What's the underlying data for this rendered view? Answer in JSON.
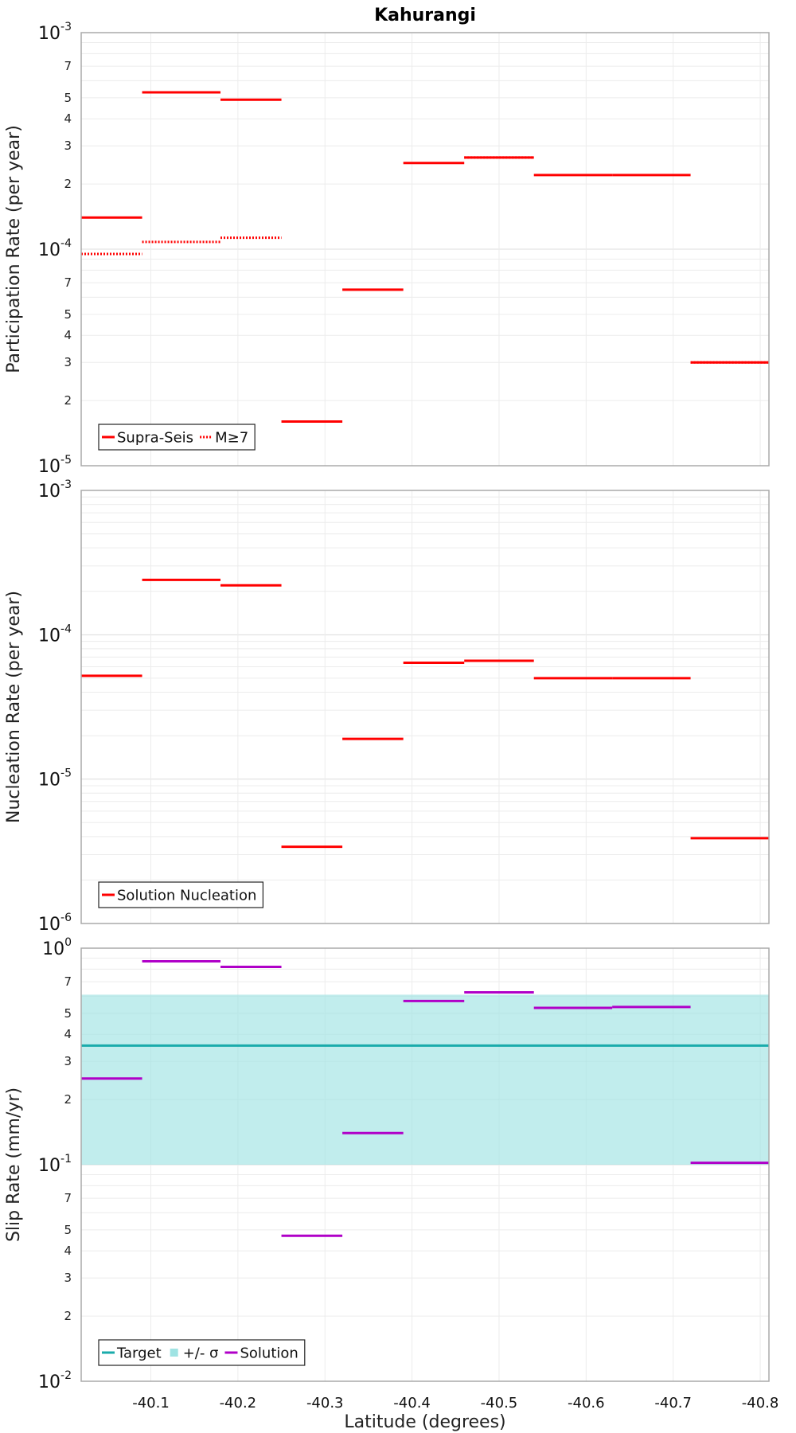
{
  "chart_data": [
    {
      "type": "line",
      "title": "Kahurangi",
      "ylabel": "Participation Rate (per year)",
      "xlabel": "",
      "yscale": "log",
      "ylim": [
        1e-05,
        0.001
      ],
      "xlim": [
        -40.02,
        -40.81
      ],
      "grid": true,
      "legend_position": "bottom-left",
      "y_major_ticks": [
        {
          "m": "10",
          "e": "-5"
        },
        {
          "m": "10",
          "e": "-4"
        },
        {
          "m": "10",
          "e": "-3"
        }
      ],
      "y_minor_ticks": [
        "2",
        "3",
        "4",
        "5",
        "7"
      ],
      "series": [
        {
          "name": "Supra-Seis",
          "style": "solid",
          "color": "#ff0000",
          "segments": [
            {
              "x0": -40.02,
              "x1": -40.09,
              "y": 0.00014
            },
            {
              "x0": -40.09,
              "x1": -40.18,
              "y": 0.00053
            },
            {
              "x0": -40.18,
              "x1": -40.25,
              "y": 0.00049
            },
            {
              "x0": -40.25,
              "x1": -40.32,
              "y": 1.6e-05
            },
            {
              "x0": -40.32,
              "x1": -40.39,
              "y": 6.5e-05
            },
            {
              "x0": -40.39,
              "x1": -40.46,
              "y": 0.00025
            },
            {
              "x0": -40.46,
              "x1": -40.54,
              "y": 0.000265
            },
            {
              "x0": -40.54,
              "x1": -40.63,
              "y": 0.00022
            },
            {
              "x0": -40.63,
              "x1": -40.72,
              "y": 0.00022
            },
            {
              "x0": -40.72,
              "x1": -40.81,
              "y": 3e-05
            }
          ]
        },
        {
          "name": "M≥7",
          "style": "dotted",
          "color": "#ff0000",
          "segments": [
            {
              "x0": -40.02,
              "x1": -40.09,
              "y": 9.5e-05
            },
            {
              "x0": -40.09,
              "x1": -40.18,
              "y": 0.000108
            },
            {
              "x0": -40.18,
              "x1": -40.25,
              "y": 0.000113
            },
            {
              "x0": -40.46,
              "x1": -40.54,
              "y": 0.000265
            },
            {
              "x0": -40.72,
              "x1": -40.81,
              "y": 3e-05
            }
          ]
        }
      ]
    },
    {
      "type": "line",
      "title": "",
      "ylabel": "Nucleation Rate (per year)",
      "xlabel": "",
      "yscale": "log",
      "ylim": [
        1e-06,
        0.001
      ],
      "xlim": [
        -40.02,
        -40.81
      ],
      "grid": true,
      "legend_position": "bottom-left",
      "y_major_ticks": [
        {
          "m": "10",
          "e": "-6"
        },
        {
          "m": "10",
          "e": "-5"
        },
        {
          "m": "10",
          "e": "-4"
        },
        {
          "m": "10",
          "e": "-3"
        }
      ],
      "y_minor_ticks": [],
      "series": [
        {
          "name": "Solution Nucleation",
          "style": "solid",
          "color": "#ff0000",
          "segments": [
            {
              "x0": -40.02,
              "x1": -40.09,
              "y": 5.2e-05
            },
            {
              "x0": -40.09,
              "x1": -40.18,
              "y": 0.00024
            },
            {
              "x0": -40.18,
              "x1": -40.25,
              "y": 0.00022
            },
            {
              "x0": -40.25,
              "x1": -40.32,
              "y": 3.4e-06
            },
            {
              "x0": -40.32,
              "x1": -40.39,
              "y": 1.9e-05
            },
            {
              "x0": -40.39,
              "x1": -40.46,
              "y": 6.4e-05
            },
            {
              "x0": -40.46,
              "x1": -40.54,
              "y": 6.6e-05
            },
            {
              "x0": -40.54,
              "x1": -40.63,
              "y": 5e-05
            },
            {
              "x0": -40.63,
              "x1": -40.72,
              "y": 5e-05
            },
            {
              "x0": -40.72,
              "x1": -40.81,
              "y": 3.9e-06
            }
          ]
        }
      ]
    },
    {
      "type": "line",
      "title": "",
      "ylabel": "Slip Rate (mm/yr)",
      "xlabel": "Latitude (degrees)",
      "yscale": "log",
      "ylim": [
        0.01,
        1
      ],
      "xlim": [
        -40.02,
        -40.81
      ],
      "grid": true,
      "legend_position": "bottom-left",
      "x_ticks": [
        "-40.1",
        "-40.2",
        "-40.3",
        "-40.4",
        "-40.5",
        "-40.6",
        "-40.7",
        "-40.8"
      ],
      "y_major_ticks": [
        {
          "m": "10",
          "e": "-2"
        },
        {
          "m": "10",
          "e": "-1"
        },
        {
          "m": "10",
          "e": "0"
        }
      ],
      "y_minor_ticks": [
        "2",
        "3",
        "4",
        "5",
        "7"
      ],
      "band": {
        "name": "+/- σ",
        "color": "#9fe3e3",
        "y0": 0.1,
        "y1": 0.61
      },
      "series": [
        {
          "name": "Target",
          "style": "solid",
          "color": "#1aabab",
          "segments": [
            {
              "x0": -40.02,
              "x1": -40.81,
              "y": 0.355
            }
          ]
        },
        {
          "name": "Solution",
          "style": "solid",
          "color": "#b000c8",
          "segments": [
            {
              "x0": -40.02,
              "x1": -40.09,
              "y": 0.25
            },
            {
              "x0": -40.09,
              "x1": -40.18,
              "y": 0.87
            },
            {
              "x0": -40.18,
              "x1": -40.25,
              "y": 0.82
            },
            {
              "x0": -40.25,
              "x1": -40.32,
              "y": 0.047
            },
            {
              "x0": -40.32,
              "x1": -40.39,
              "y": 0.14
            },
            {
              "x0": -40.39,
              "x1": -40.46,
              "y": 0.57
            },
            {
              "x0": -40.46,
              "x1": -40.54,
              "y": 0.625
            },
            {
              "x0": -40.54,
              "x1": -40.63,
              "y": 0.53
            },
            {
              "x0": -40.63,
              "x1": -40.72,
              "y": 0.535
            },
            {
              "x0": -40.72,
              "x1": -40.81,
              "y": 0.102
            }
          ]
        }
      ]
    }
  ]
}
